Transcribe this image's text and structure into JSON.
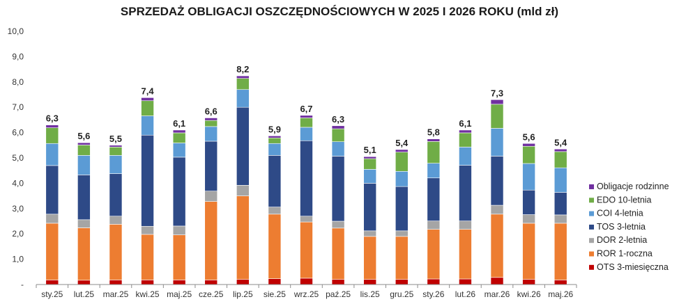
{
  "chart_data": {
    "type": "bar",
    "stacked": true,
    "title": "SPRZEDAŻ OBLIGACJI OSZCZĘDNOŚCIOWYCH W 2025 I 2026 ROKU (mld zł)",
    "xlabel": "",
    "ylabel": "",
    "ylim": [
      0,
      10
    ],
    "yticks": [
      "-",
      "1,0",
      "2,0",
      "3,0",
      "4,0",
      "5,0",
      "6,0",
      "7,0",
      "8,0",
      "9,0",
      "10,0"
    ],
    "grid": false,
    "legend_position": "right",
    "categories": [
      "sty.25",
      "lut.25",
      "mar.25",
      "kwi.25",
      "maj.25",
      "cze.25",
      "lip.25",
      "sie.25",
      "wrz.25",
      "paź.25",
      "lis.25",
      "gru.25",
      "sty.26",
      "lut.26",
      "mar.26",
      "kwi.26",
      "maj.26"
    ],
    "totals": [
      "6,3",
      "5,6",
      "5,5",
      "7,4",
      "6,1",
      "6,6",
      "8,2",
      "5,9",
      "6,7",
      "6,3",
      "5,1",
      "5,4",
      "5,8",
      "6,1",
      "7,3",
      "5,6",
      "5,4"
    ],
    "series": [
      {
        "name": "OTS 3-miesięczna",
        "color": "#c00000",
        "values": [
          0.18,
          0.17,
          0.18,
          0.18,
          0.18,
          0.18,
          0.2,
          0.23,
          0.25,
          0.2,
          0.2,
          0.2,
          0.22,
          0.22,
          0.28,
          0.2,
          0.18
        ]
      },
      {
        "name": "ROR 1-roczna",
        "color": "#ed7d31",
        "values": [
          2.24,
          2.07,
          2.2,
          1.8,
          1.78,
          3.1,
          3.3,
          2.55,
          2.22,
          2.03,
          1.7,
          1.7,
          1.96,
          1.96,
          2.5,
          2.22,
          2.24
        ]
      },
      {
        "name": "DOR 2-letnia",
        "color": "#a5a5a5",
        "values": [
          0.36,
          0.32,
          0.32,
          0.32,
          0.35,
          0.41,
          0.42,
          0.28,
          0.23,
          0.27,
          0.22,
          0.22,
          0.33,
          0.33,
          0.35,
          0.34,
          0.33
        ]
      },
      {
        "name": "TOS 3-letnia",
        "color": "#2e4a87",
        "values": [
          1.92,
          1.77,
          1.68,
          3.6,
          2.72,
          1.97,
          3.08,
          2.04,
          2.98,
          2.57,
          1.88,
          1.75,
          1.7,
          2.2,
          1.94,
          0.97,
          0.89
        ]
      },
      {
        "name": "COI 4-letnia",
        "color": "#5b9bd5",
        "values": [
          0.87,
          0.77,
          0.72,
          0.76,
          0.56,
          0.58,
          0.7,
          0.47,
          0.53,
          0.57,
          0.55,
          0.6,
          0.58,
          0.72,
          1.1,
          1.05,
          0.97
        ]
      },
      {
        "name": "EDO 10-letnia",
        "color": "#70ad47",
        "values": [
          0.62,
          0.41,
          0.33,
          0.6,
          0.4,
          0.24,
          0.44,
          0.22,
          0.37,
          0.51,
          0.42,
          0.76,
          0.86,
          0.56,
          0.95,
          0.68,
          0.64
        ]
      },
      {
        "name": "Obligacje rodzinne",
        "color": "#7030a0",
        "values": [
          0.11,
          0.09,
          0.07,
          0.12,
          0.11,
          0.1,
          0.1,
          0.08,
          0.1,
          0.12,
          0.08,
          0.1,
          0.1,
          0.11,
          0.18,
          0.11,
          0.1
        ]
      }
    ],
    "legend_order": [
      "Obligacje rodzinne",
      "EDO 10-letnia",
      "COI 4-letnia",
      "TOS 3-letnia",
      "DOR 2-letnia",
      "ROR 1-roczna",
      "OTS 3-miesięczna"
    ]
  }
}
